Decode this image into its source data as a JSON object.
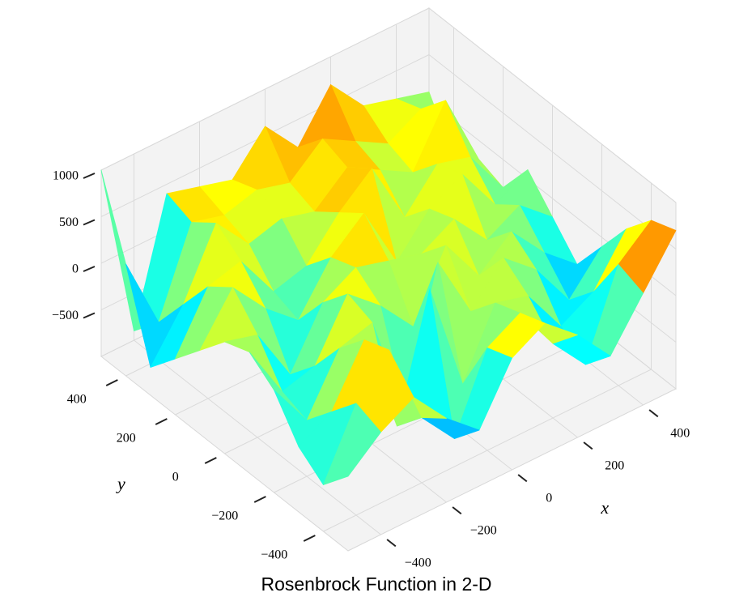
{
  "chart_data": {
    "type": "surface",
    "title": "Rosenbrock Function in 2-D",
    "x_label": "x",
    "y_label": "y",
    "xlim": [
      -500,
      500
    ],
    "ylim": [
      -500,
      500
    ],
    "zlim": [
      -1000,
      1000
    ],
    "xticks": [
      {
        "value": -400,
        "label": "−400"
      },
      {
        "value": -200,
        "label": "−200"
      },
      0,
      200,
      400
    ],
    "yticks": [
      {
        "value": -400,
        "label": "−400"
      },
      {
        "value": -200,
        "label": "−200"
      },
      0,
      200,
      400
    ],
    "zticks": [
      {
        "value": -500,
        "label": "−500"
      },
      0,
      500,
      1000
    ],
    "grid": true,
    "colormap": "jet",
    "x": [
      -500,
      -400,
      -300,
      -200,
      -100,
      0,
      100,
      200,
      300,
      400,
      500
    ],
    "y": [
      -500,
      -400,
      -300,
      -200,
      -100,
      0,
      100,
      200,
      300,
      400,
      500
    ],
    "z": [
      [
        -200,
        100,
        300,
        -100,
        -400,
        200,
        400,
        100,
        -300,
        200,
        700
      ],
      [
        -500,
        200,
        600,
        -300,
        -700,
        100,
        300,
        -200,
        -600,
        300,
        600
      ],
      [
        -300,
        -100,
        500,
        -600,
        700,
        -500,
        200,
        100,
        -400,
        -200,
        300
      ],
      [
        100,
        -400,
        200,
        300,
        -800,
        600,
        -100,
        300,
        0,
        -500,
        -100
      ],
      [
        300,
        -300,
        -200,
        400,
        100,
        -300,
        400,
        -100,
        200,
        -200,
        -500
      ],
      [
        200,
        100,
        -500,
        100,
        300,
        200,
        100,
        300,
        -100,
        100,
        -200
      ],
      [
        -100,
        400,
        0,
        -300,
        200,
        500,
        -200,
        200,
        400,
        -100,
        100
      ],
      [
        -400,
        200,
        300,
        -200,
        -100,
        300,
        600,
        -100,
        300,
        200,
        -300
      ],
      [
        -700,
        -200,
        500,
        100,
        200,
        100,
        400,
        200,
        0,
        600,
        -200
      ],
      [
        200,
        -600,
        300,
        200,
        300,
        200,
        500,
        300,
        100,
        300,
        -400
      ],
      [
        1000,
        -900,
        400,
        300,
        200,
        600,
        200,
        700,
        300,
        200,
        100
      ]
    ]
  }
}
